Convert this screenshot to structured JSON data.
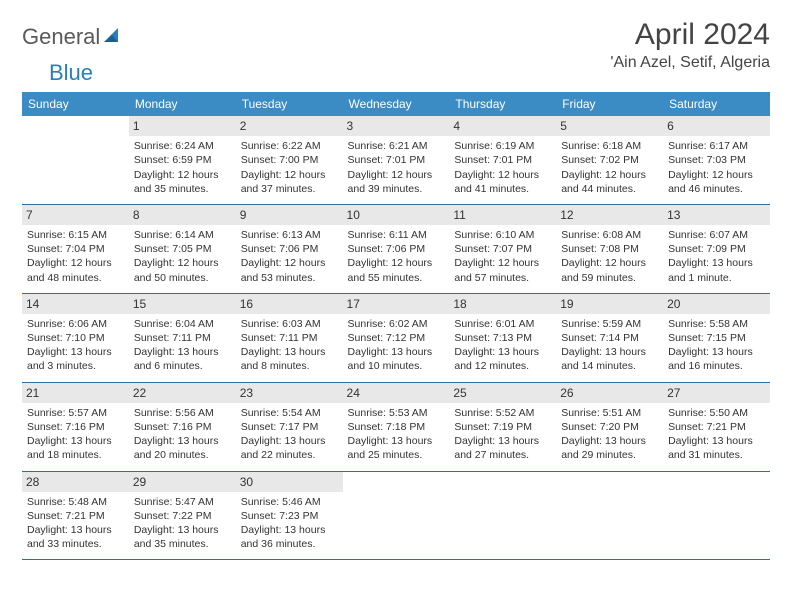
{
  "logo": {
    "part1": "General",
    "part2": "Blue"
  },
  "title": "April 2024",
  "location": "'Ain Azel, Setif, Algeria",
  "colors": {
    "header_bg": "#3b8bc4",
    "header_text": "#ffffff",
    "daynum_bg": "#e8e8e8",
    "row_border": "#2f6fa0",
    "logo_gray": "#5a5a5a",
    "logo_blue": "#2a7fba",
    "body_text": "#333333"
  },
  "weekdays": [
    "Sunday",
    "Monday",
    "Tuesday",
    "Wednesday",
    "Thursday",
    "Friday",
    "Saturday"
  ],
  "weeks": [
    [
      {
        "day": "",
        "sunrise": "",
        "sunset": "",
        "daylight": ""
      },
      {
        "day": "1",
        "sunrise": "Sunrise: 6:24 AM",
        "sunset": "Sunset: 6:59 PM",
        "daylight": "Daylight: 12 hours and 35 minutes."
      },
      {
        "day": "2",
        "sunrise": "Sunrise: 6:22 AM",
        "sunset": "Sunset: 7:00 PM",
        "daylight": "Daylight: 12 hours and 37 minutes."
      },
      {
        "day": "3",
        "sunrise": "Sunrise: 6:21 AM",
        "sunset": "Sunset: 7:01 PM",
        "daylight": "Daylight: 12 hours and 39 minutes."
      },
      {
        "day": "4",
        "sunrise": "Sunrise: 6:19 AM",
        "sunset": "Sunset: 7:01 PM",
        "daylight": "Daylight: 12 hours and 41 minutes."
      },
      {
        "day": "5",
        "sunrise": "Sunrise: 6:18 AM",
        "sunset": "Sunset: 7:02 PM",
        "daylight": "Daylight: 12 hours and 44 minutes."
      },
      {
        "day": "6",
        "sunrise": "Sunrise: 6:17 AM",
        "sunset": "Sunset: 7:03 PM",
        "daylight": "Daylight: 12 hours and 46 minutes."
      }
    ],
    [
      {
        "day": "7",
        "sunrise": "Sunrise: 6:15 AM",
        "sunset": "Sunset: 7:04 PM",
        "daylight": "Daylight: 12 hours and 48 minutes."
      },
      {
        "day": "8",
        "sunrise": "Sunrise: 6:14 AM",
        "sunset": "Sunset: 7:05 PM",
        "daylight": "Daylight: 12 hours and 50 minutes."
      },
      {
        "day": "9",
        "sunrise": "Sunrise: 6:13 AM",
        "sunset": "Sunset: 7:06 PM",
        "daylight": "Daylight: 12 hours and 53 minutes."
      },
      {
        "day": "10",
        "sunrise": "Sunrise: 6:11 AM",
        "sunset": "Sunset: 7:06 PM",
        "daylight": "Daylight: 12 hours and 55 minutes."
      },
      {
        "day": "11",
        "sunrise": "Sunrise: 6:10 AM",
        "sunset": "Sunset: 7:07 PM",
        "daylight": "Daylight: 12 hours and 57 minutes."
      },
      {
        "day": "12",
        "sunrise": "Sunrise: 6:08 AM",
        "sunset": "Sunset: 7:08 PM",
        "daylight": "Daylight: 12 hours and 59 minutes."
      },
      {
        "day": "13",
        "sunrise": "Sunrise: 6:07 AM",
        "sunset": "Sunset: 7:09 PM",
        "daylight": "Daylight: 13 hours and 1 minute."
      }
    ],
    [
      {
        "day": "14",
        "sunrise": "Sunrise: 6:06 AM",
        "sunset": "Sunset: 7:10 PM",
        "daylight": "Daylight: 13 hours and 3 minutes."
      },
      {
        "day": "15",
        "sunrise": "Sunrise: 6:04 AM",
        "sunset": "Sunset: 7:11 PM",
        "daylight": "Daylight: 13 hours and 6 minutes."
      },
      {
        "day": "16",
        "sunrise": "Sunrise: 6:03 AM",
        "sunset": "Sunset: 7:11 PM",
        "daylight": "Daylight: 13 hours and 8 minutes."
      },
      {
        "day": "17",
        "sunrise": "Sunrise: 6:02 AM",
        "sunset": "Sunset: 7:12 PM",
        "daylight": "Daylight: 13 hours and 10 minutes."
      },
      {
        "day": "18",
        "sunrise": "Sunrise: 6:01 AM",
        "sunset": "Sunset: 7:13 PM",
        "daylight": "Daylight: 13 hours and 12 minutes."
      },
      {
        "day": "19",
        "sunrise": "Sunrise: 5:59 AM",
        "sunset": "Sunset: 7:14 PM",
        "daylight": "Daylight: 13 hours and 14 minutes."
      },
      {
        "day": "20",
        "sunrise": "Sunrise: 5:58 AM",
        "sunset": "Sunset: 7:15 PM",
        "daylight": "Daylight: 13 hours and 16 minutes."
      }
    ],
    [
      {
        "day": "21",
        "sunrise": "Sunrise: 5:57 AM",
        "sunset": "Sunset: 7:16 PM",
        "daylight": "Daylight: 13 hours and 18 minutes."
      },
      {
        "day": "22",
        "sunrise": "Sunrise: 5:56 AM",
        "sunset": "Sunset: 7:16 PM",
        "daylight": "Daylight: 13 hours and 20 minutes."
      },
      {
        "day": "23",
        "sunrise": "Sunrise: 5:54 AM",
        "sunset": "Sunset: 7:17 PM",
        "daylight": "Daylight: 13 hours and 22 minutes."
      },
      {
        "day": "24",
        "sunrise": "Sunrise: 5:53 AM",
        "sunset": "Sunset: 7:18 PM",
        "daylight": "Daylight: 13 hours and 25 minutes."
      },
      {
        "day": "25",
        "sunrise": "Sunrise: 5:52 AM",
        "sunset": "Sunset: 7:19 PM",
        "daylight": "Daylight: 13 hours and 27 minutes."
      },
      {
        "day": "26",
        "sunrise": "Sunrise: 5:51 AM",
        "sunset": "Sunset: 7:20 PM",
        "daylight": "Daylight: 13 hours and 29 minutes."
      },
      {
        "day": "27",
        "sunrise": "Sunrise: 5:50 AM",
        "sunset": "Sunset: 7:21 PM",
        "daylight": "Daylight: 13 hours and 31 minutes."
      }
    ],
    [
      {
        "day": "28",
        "sunrise": "Sunrise: 5:48 AM",
        "sunset": "Sunset: 7:21 PM",
        "daylight": "Daylight: 13 hours and 33 minutes."
      },
      {
        "day": "29",
        "sunrise": "Sunrise: 5:47 AM",
        "sunset": "Sunset: 7:22 PM",
        "daylight": "Daylight: 13 hours and 35 minutes."
      },
      {
        "day": "30",
        "sunrise": "Sunrise: 5:46 AM",
        "sunset": "Sunset: 7:23 PM",
        "daylight": "Daylight: 13 hours and 36 minutes."
      },
      {
        "day": "",
        "sunrise": "",
        "sunset": "",
        "daylight": ""
      },
      {
        "day": "",
        "sunrise": "",
        "sunset": "",
        "daylight": ""
      },
      {
        "day": "",
        "sunrise": "",
        "sunset": "",
        "daylight": ""
      },
      {
        "day": "",
        "sunrise": "",
        "sunset": "",
        "daylight": ""
      }
    ]
  ]
}
